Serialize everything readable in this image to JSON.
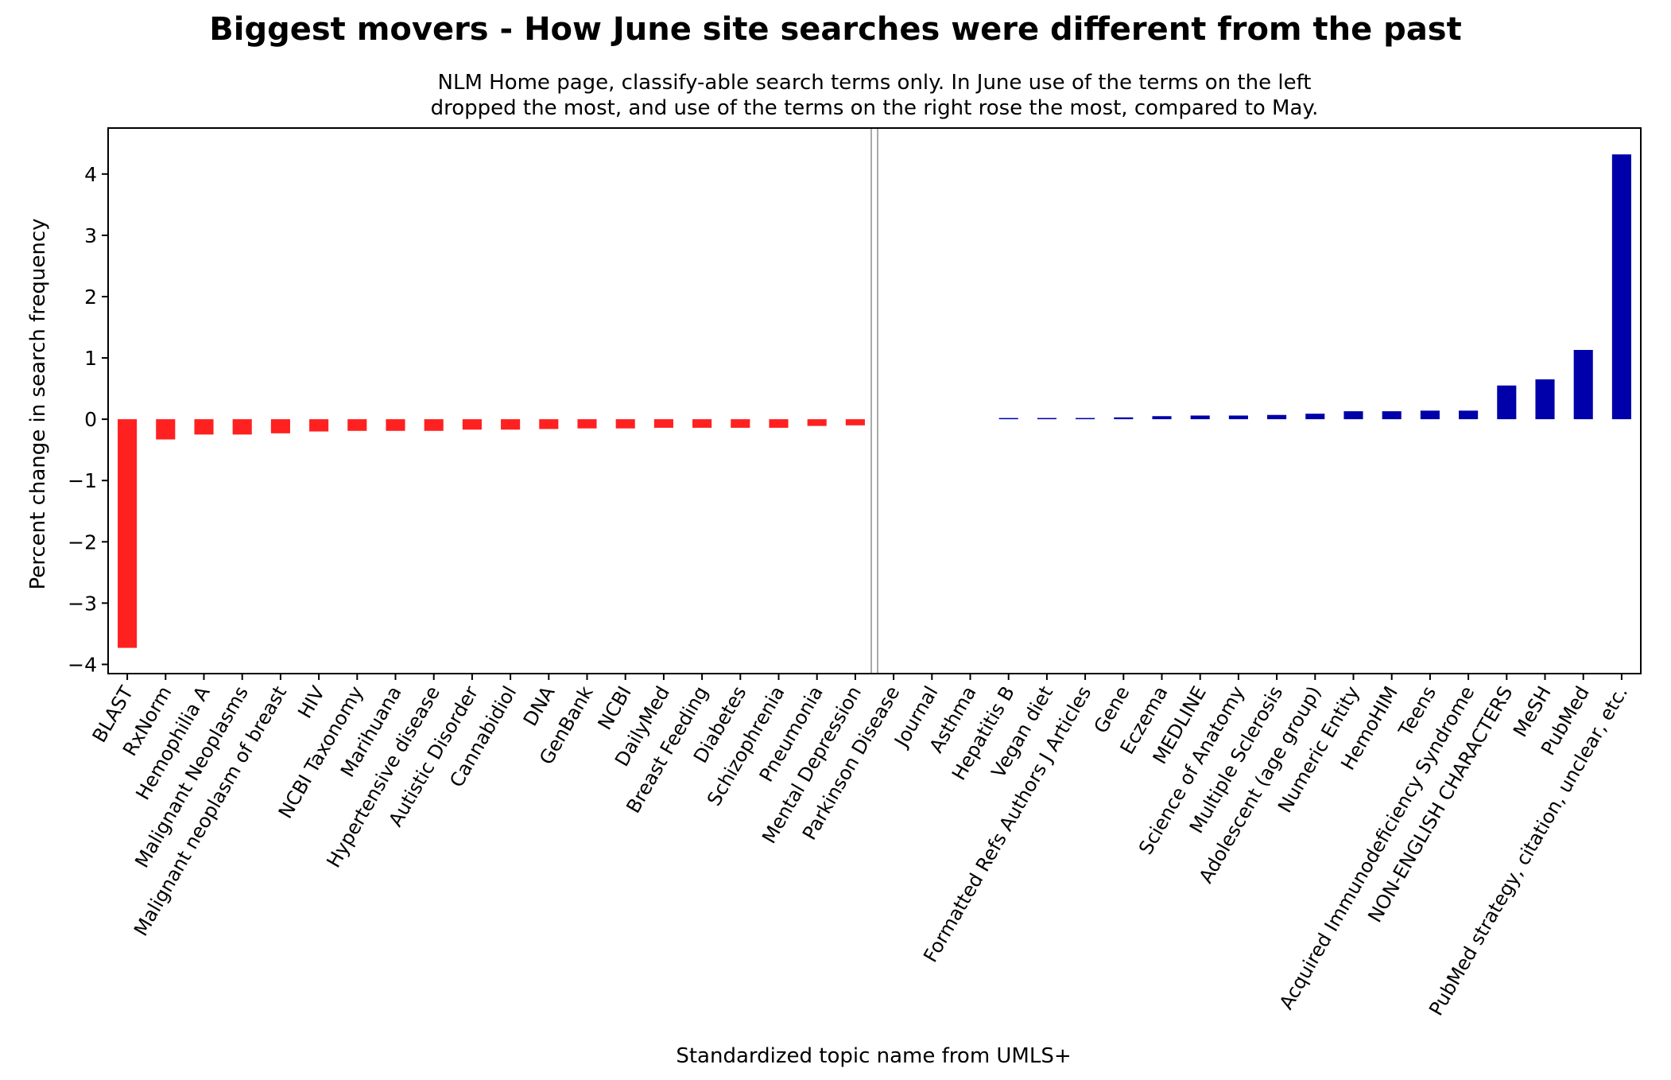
{
  "chart_data": {
    "type": "bar",
    "title": "Biggest movers - How June site searches were different from the past",
    "subtitle_lines": [
      "NLM Home page, classify-able search terms only. In June use of the terms on the left",
      "dropped the most, and use of the terms on the right rose the most, compared to May."
    ],
    "xlabel": "Standardized topic name from UMLS+",
    "ylabel": "Percent change in search frequency",
    "ylim": [
      -4.15,
      4.75
    ],
    "yticks": [
      4,
      3,
      2,
      1,
      0,
      -1,
      -2,
      -3,
      -4
    ],
    "ytick_labels": [
      "4",
      "3",
      "2",
      "1",
      "0",
      "−1",
      "−2",
      "−3",
      "−4"
    ],
    "grid": false,
    "legend": "none",
    "colors": {
      "decrease": "#ff2020",
      "increase": "#0000aa",
      "divider": "#aaaaaa"
    },
    "divider_after_category": "Mental Depression",
    "categories": [
      "BLAST",
      "RxNorm",
      "Hemophilia A",
      "Malignant Neoplasms",
      "Malignant neoplasm of breast",
      "HIV",
      "NCBI Taxonomy",
      "Marihuana",
      "Hypertensive disease",
      "Autistic Disorder",
      "Cannabidiol",
      "DNA",
      "GenBank",
      "NCBI",
      "DailyMed",
      "Breast Feeding",
      "Diabetes",
      "Schizophrenia",
      "Pneumonia",
      "Mental Depression",
      "Parkinson Disease",
      "Journal",
      "Asthma",
      "Hepatitis B",
      "Vegan diet",
      "Formatted Refs Authors J Articles",
      "Gene",
      "Eczema",
      "MEDLINE",
      "Science of Anatomy",
      "Multiple Sclerosis",
      "Adolescent (age group)",
      "Numeric Entity",
      "HemoHIM",
      "Teens",
      "Acquired Immunodeficiency Syndrome",
      "NON-ENGLISH CHARACTERS",
      "MeSH",
      "PubMed",
      "PubMed strategy, citation, unclear, etc."
    ],
    "values": [
      -3.73,
      -0.33,
      -0.25,
      -0.25,
      -0.23,
      -0.2,
      -0.19,
      -0.19,
      -0.19,
      -0.17,
      -0.17,
      -0.16,
      -0.15,
      -0.15,
      -0.14,
      -0.14,
      -0.14,
      -0.14,
      -0.11,
      -0.1,
      0.0,
      0.0,
      0.0,
      0.01,
      0.02,
      0.02,
      0.03,
      0.05,
      0.06,
      0.06,
      0.07,
      0.09,
      0.13,
      0.13,
      0.14,
      0.14,
      0.55,
      0.65,
      1.13,
      4.32
    ]
  }
}
